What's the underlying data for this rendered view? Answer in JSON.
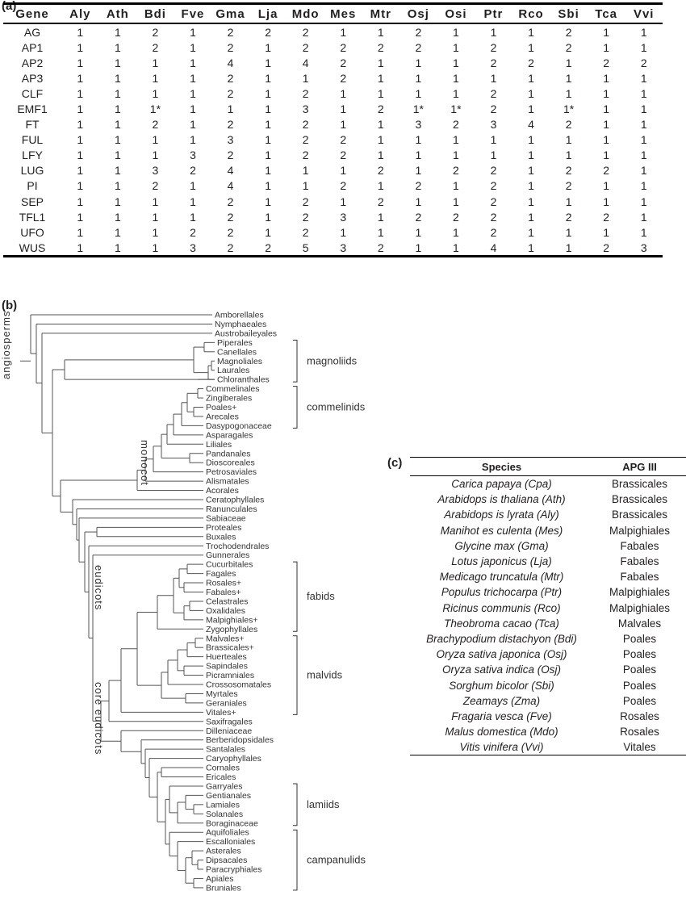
{
  "panel_a": {
    "label": "(a)",
    "headers": [
      "Gene",
      "Aly",
      "Ath",
      "Bdi",
      "Fve",
      "Gma",
      "Lja",
      "Mdo",
      "Mes",
      "Mtr",
      "Osj",
      "Osi",
      "Ptr",
      "Rco",
      "Sbi",
      "Tca",
      "Vvi"
    ],
    "rows": [
      [
        "AG",
        "1",
        "1",
        "2",
        "1",
        "2",
        "2",
        "2",
        "1",
        "1",
        "2",
        "1",
        "1",
        "1",
        "2",
        "1",
        "1"
      ],
      [
        "AP1",
        "1",
        "1",
        "2",
        "1",
        "2",
        "1",
        "2",
        "2",
        "2",
        "2",
        "1",
        "2",
        "1",
        "2",
        "1",
        "1"
      ],
      [
        "AP2",
        "1",
        "1",
        "1",
        "1",
        "4",
        "1",
        "4",
        "2",
        "1",
        "1",
        "1",
        "2",
        "2",
        "1",
        "2",
        "2"
      ],
      [
        "AP3",
        "1",
        "1",
        "1",
        "1",
        "2",
        "1",
        "1",
        "2",
        "1",
        "1",
        "1",
        "1",
        "1",
        "1",
        "1",
        "1"
      ],
      [
        "CLF",
        "1",
        "1",
        "1",
        "1",
        "2",
        "1",
        "2",
        "1",
        "1",
        "1",
        "1",
        "2",
        "1",
        "1",
        "1",
        "1"
      ],
      [
        "EMF1",
        "1",
        "1",
        "1*",
        "1",
        "1",
        "1",
        "3",
        "1",
        "2",
        "1*",
        "1*",
        "2",
        "1",
        "1*",
        "1",
        "1"
      ],
      [
        "FT",
        "1",
        "1",
        "2",
        "1",
        "2",
        "1",
        "2",
        "1",
        "1",
        "3",
        "2",
        "3",
        "4",
        "2",
        "1",
        "1"
      ],
      [
        "FUL",
        "1",
        "1",
        "1",
        "1",
        "3",
        "1",
        "2",
        "2",
        "1",
        "1",
        "1",
        "1",
        "1",
        "1",
        "1",
        "1"
      ],
      [
        "LFY",
        "1",
        "1",
        "1",
        "3",
        "2",
        "1",
        "2",
        "2",
        "1",
        "1",
        "1",
        "1",
        "1",
        "1",
        "1",
        "1"
      ],
      [
        "LUG",
        "1",
        "1",
        "3",
        "2",
        "4",
        "1",
        "1",
        "1",
        "2",
        "1",
        "2",
        "2",
        "1",
        "2",
        "2",
        "1"
      ],
      [
        "PI",
        "1",
        "1",
        "2",
        "1",
        "4",
        "1",
        "1",
        "2",
        "1",
        "2",
        "1",
        "2",
        "1",
        "2",
        "1",
        "1"
      ],
      [
        "SEP",
        "1",
        "1",
        "1",
        "1",
        "2",
        "1",
        "2",
        "1",
        "2",
        "1",
        "1",
        "2",
        "1",
        "1",
        "1",
        "1"
      ],
      [
        "TFL1",
        "1",
        "1",
        "1",
        "1",
        "2",
        "1",
        "2",
        "3",
        "1",
        "2",
        "2",
        "2",
        "1",
        "2",
        "2",
        "1"
      ],
      [
        "UFO",
        "1",
        "1",
        "1",
        "2",
        "2",
        "1",
        "2",
        "1",
        "1",
        "1",
        "1",
        "2",
        "1",
        "1",
        "1",
        "1"
      ],
      [
        "WUS",
        "1",
        "1",
        "1",
        "3",
        "2",
        "2",
        "5",
        "3",
        "2",
        "1",
        "1",
        "4",
        "1",
        "1",
        "2",
        "3"
      ]
    ]
  },
  "panel_b": {
    "label": "(b)",
    "taxa": [
      "Amborellales",
      "Nymphaeales",
      "Austrobaileyales",
      "Piperales",
      "Canellales",
      "Magnoliales",
      "Laurales",
      "Chloranthales",
      "Commelinales",
      "Zingiberales",
      "Poales+",
      "Arecales",
      "Dasypogonaceae",
      "Asparagales",
      "Liliales",
      "Pandanales",
      "Dioscoreales",
      "Petrosaviales",
      "Alismatales",
      "Acorales",
      "Ceratophyllales",
      "Ranunculales",
      "Sabiaceae",
      "Proteales",
      "Buxales",
      "Trochodendrales",
      "Gunnerales",
      "Cucurbitales",
      "Fagales",
      "Rosales+",
      "Fabales+",
      "Celastrales",
      "Oxalidales",
      "Malpighiales+",
      "Zygophyllales",
      "Malvales+",
      "Brassicales+",
      "Huerteales",
      "Sapindales",
      "Picramniales",
      "Crossosomatales",
      "Myrtales",
      "Geraniales",
      "Vitales+",
      "Saxifragales",
      "Dilleniaceae",
      "Berberidopsidales",
      "Santalales",
      "Caryophyllales",
      "Cornales",
      "Ericales",
      "Garryales",
      "Gentianales",
      "Lamiales",
      "Solanales",
      "Boraginaceae",
      "Aquifoliales",
      "Escalloniales",
      "Asterales",
      "Dipsacales",
      "Paracryphiales",
      "Apiales",
      "Bruniales"
    ],
    "clades": {
      "magnoliids": "magnoliids",
      "commelinids": "commelinids",
      "fabids": "fabids",
      "malvids": "malvids",
      "lamiids": "lamiids",
      "campanulids": "campanulids"
    },
    "vertical_labels": {
      "angiosperms": "angiosperms",
      "monocot": "monocot",
      "eudicots": "eudicots",
      "core_eudicots": "core eudicots"
    }
  },
  "panel_c": {
    "label": "(c)",
    "headers": [
      "Species",
      "APG III"
    ],
    "rows": [
      [
        "Carica papaya (Cpa)",
        "Brassicales"
      ],
      [
        "Arabidops is thaliana (Ath)",
        "Brassicales"
      ],
      [
        "Arabidops is lyrata (Aly)",
        "Brassicales"
      ],
      [
        "Manihot es culenta (Mes)",
        "Malpighiales"
      ],
      [
        "Glycine max (Gma)",
        "Fabales"
      ],
      [
        "Lotus japonicus (Lja)",
        "Fabales"
      ],
      [
        "Medicago truncatula (Mtr)",
        "Fabales"
      ],
      [
        "Populus trichocarpa (Ptr)",
        "Malpighiales"
      ],
      [
        "Ricinus communis (Rco)",
        "Malpighiales"
      ],
      [
        "Theobroma cacao (Tca)",
        "Malvales"
      ],
      [
        "Brachypodium distachyon (Bdi)",
        "Poales"
      ],
      [
        "Oryza sativa japonica (Osj)",
        "Poales"
      ],
      [
        "Oryza sativa indica (Osj)",
        "Poales"
      ],
      [
        "Sorghum bicolor (Sbi)",
        "Poales"
      ],
      [
        "Zeamays (Zma)",
        "Poales"
      ],
      [
        "Fragaria vesca (Fve)",
        "Rosales"
      ],
      [
        "Malus domestica (Mdo)",
        "Rosales"
      ],
      [
        "Vitis vinifera (Vvi)",
        "Vitales"
      ]
    ]
  }
}
